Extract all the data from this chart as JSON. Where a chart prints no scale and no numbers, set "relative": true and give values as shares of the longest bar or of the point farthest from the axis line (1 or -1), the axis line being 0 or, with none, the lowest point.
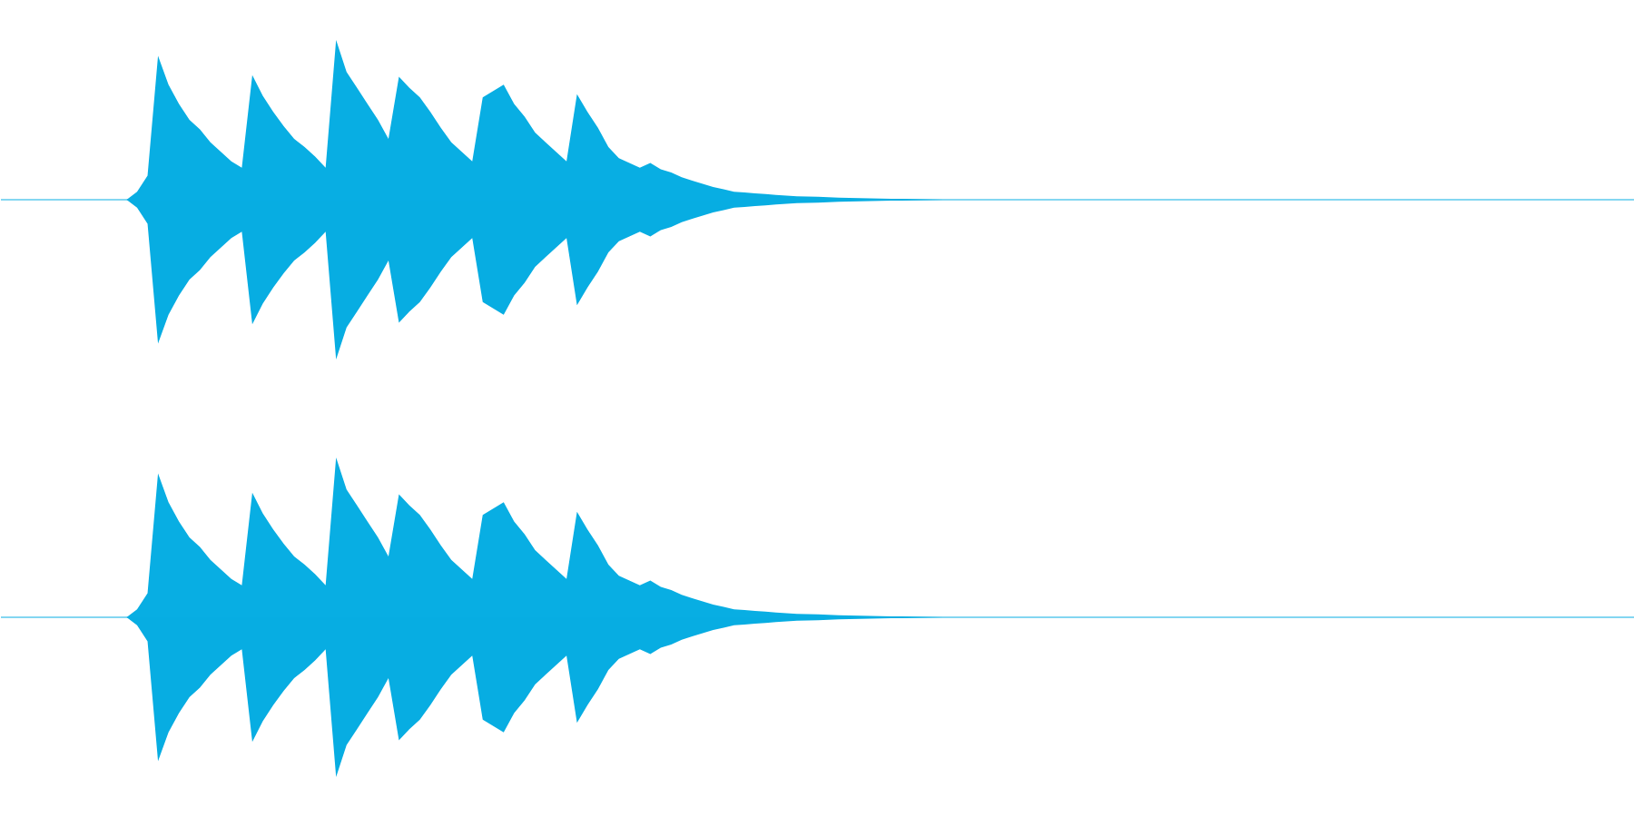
{
  "chart_data": [
    {
      "type": "area",
      "relative": true,
      "tick_labels": false,
      "categories": [
        null,
        null,
        null,
        null,
        null,
        null,
        null,
        null,
        null,
        null,
        null,
        null,
        null,
        null,
        null,
        null,
        null,
        null,
        null,
        null,
        null,
        null,
        null,
        null,
        null,
        null,
        null,
        null,
        null,
        null,
        null,
        null,
        null,
        null,
        null,
        null,
        null,
        null,
        null,
        null,
        null,
        null,
        null,
        null,
        null,
        null,
        null,
        null,
        null,
        null,
        null,
        null,
        null,
        null,
        null,
        null,
        null,
        null,
        null,
        null,
        null,
        null,
        null,
        null,
        null,
        null,
        null,
        null,
        null,
        null,
        null,
        null,
        null,
        null,
        null,
        null,
        null,
        null,
        null,
        null,
        null,
        null,
        null,
        null,
        null,
        null,
        null,
        null,
        null,
        null,
        null,
        null,
        null,
        null,
        null,
        null,
        null,
        null,
        null,
        null,
        null,
        null,
        null,
        null,
        null,
        null,
        null,
        null,
        null,
        null,
        null,
        null,
        null,
        null,
        null,
        null,
        null,
        null,
        null,
        null,
        null,
        null,
        null,
        null,
        null,
        null,
        null,
        null,
        null,
        null,
        null,
        null,
        null,
        null,
        null,
        null,
        null,
        null,
        null,
        null,
        null,
        null,
        null,
        null,
        null,
        null,
        null,
        null,
        null,
        null,
        null,
        null,
        null,
        null,
        null,
        null,
        null
      ],
      "series": [
        {
          "color": "#08aee3",
          "values": [
            0,
            0,
            0,
            0,
            0,
            0,
            0,
            0,
            0,
            0,
            0,
            0,
            0,
            0.05,
            0.15,
            0.9,
            0.72,
            0.6,
            0.5,
            0.44,
            0.36,
            0.3,
            0.24,
            0.2,
            0.78,
            0.65,
            0.55,
            0.46,
            0.38,
            0.33,
            0.27,
            0.2,
            1.0,
            0.8,
            0.7,
            0.6,
            0.5,
            0.38,
            0.77,
            0.7,
            0.64,
            0.55,
            0.45,
            0.36,
            0.3,
            0.24,
            0.64,
            0.68,
            0.72,
            0.6,
            0.52,
            0.42,
            0.36,
            0.3,
            0.24,
            0.66,
            0.55,
            0.45,
            0.33,
            0.26,
            0.23,
            0.2,
            0.23,
            0.19,
            0.17,
            0.14,
            0.12,
            0.1,
            0.08,
            0.065,
            0.05,
            0.045,
            0.04,
            0.035,
            0.03,
            0.025,
            0.022,
            0.02,
            0.018,
            0.015,
            0.013,
            0.011,
            0.01,
            0.008,
            0.007,
            0.006,
            0.005,
            0.004,
            0.003,
            0.002,
            0,
            0,
            0,
            0,
            0,
            0,
            0,
            0,
            0,
            0,
            0,
            0,
            0,
            0,
            0,
            0,
            0,
            0,
            0,
            0,
            0,
            0,
            0,
            0,
            0,
            0,
            0,
            0,
            0,
            0,
            0,
            0,
            0,
            0,
            0,
            0,
            0,
            0,
            0,
            0,
            0,
            0,
            0,
            0,
            0,
            0,
            0,
            0,
            0,
            0,
            0,
            0,
            0,
            0,
            0,
            0,
            0,
            0,
            0,
            0,
            0,
            0,
            0,
            0,
            0,
            0,
            0
          ]
        },
        {
          "color": "#07ade2",
          "values": [
            0,
            0,
            0,
            0,
            0,
            0,
            0,
            0,
            0,
            0,
            0,
            0,
            0,
            -0.05,
            -0.15,
            -0.9,
            -0.72,
            -0.6,
            -0.5,
            -0.44,
            -0.36,
            -0.3,
            -0.24,
            -0.2,
            -0.78,
            -0.65,
            -0.55,
            -0.46,
            -0.38,
            -0.33,
            -0.27,
            -0.2,
            -1.0,
            -0.8,
            -0.7,
            -0.6,
            -0.5,
            -0.38,
            -0.77,
            -0.7,
            -0.64,
            -0.55,
            -0.45,
            -0.36,
            -0.3,
            -0.24,
            -0.64,
            -0.68,
            -0.72,
            -0.6,
            -0.52,
            -0.42,
            -0.36,
            -0.3,
            -0.24,
            -0.66,
            -0.55,
            -0.45,
            -0.33,
            -0.26,
            -0.23,
            -0.2,
            -0.23,
            -0.19,
            -0.17,
            -0.14,
            -0.12,
            -0.1,
            -0.08,
            -0.065,
            -0.05,
            -0.045,
            -0.04,
            -0.035,
            -0.03,
            -0.025,
            -0.022,
            -0.02,
            -0.018,
            -0.015,
            -0.013,
            -0.011,
            -0.01,
            -0.008,
            -0.007,
            -0.006,
            -0.005,
            -0.004,
            -0.003,
            -0.002,
            0,
            0,
            0,
            0,
            0,
            0,
            0,
            0,
            0,
            0,
            0,
            0,
            0,
            0,
            0,
            0,
            0,
            0,
            0,
            0,
            0,
            0,
            0,
            0,
            0,
            0,
            0,
            0,
            0,
            0,
            0,
            0,
            0,
            0,
            0,
            0,
            0,
            0,
            0,
            0,
            0,
            0,
            0,
            0,
            0,
            0,
            0,
            0,
            0,
            0,
            0,
            0,
            0,
            0,
            0,
            0,
            0,
            0,
            0,
            0,
            0,
            0,
            0,
            0,
            0,
            0,
            0
          ]
        }
      ]
    },
    {
      "type": "area",
      "relative": true,
      "tick_labels": false,
      "categories": [
        null,
        null,
        null,
        null,
        null,
        null,
        null,
        null,
        null,
        null,
        null,
        null,
        null,
        null,
        null,
        null,
        null,
        null,
        null,
        null,
        null,
        null,
        null,
        null,
        null,
        null,
        null,
        null,
        null,
        null,
        null,
        null,
        null,
        null,
        null,
        null,
        null,
        null,
        null,
        null,
        null,
        null,
        null,
        null,
        null,
        null,
        null,
        null,
        null,
        null,
        null,
        null,
        null,
        null,
        null,
        null,
        null,
        null,
        null,
        null,
        null,
        null,
        null,
        null,
        null,
        null,
        null,
        null,
        null,
        null,
        null,
        null,
        null,
        null,
        null,
        null,
        null,
        null,
        null,
        null,
        null,
        null,
        null,
        null,
        null,
        null,
        null,
        null,
        null,
        null,
        null,
        null,
        null,
        null,
        null,
        null,
        null,
        null,
        null,
        null,
        null,
        null,
        null,
        null,
        null,
        null,
        null,
        null,
        null,
        null,
        null,
        null,
        null,
        null,
        null,
        null,
        null,
        null,
        null,
        null,
        null,
        null,
        null,
        null,
        null,
        null,
        null,
        null,
        null,
        null,
        null,
        null,
        null,
        null,
        null,
        null,
        null,
        null,
        null,
        null,
        null,
        null,
        null,
        null,
        null,
        null,
        null,
        null,
        null,
        null,
        null,
        null,
        null,
        null,
        null,
        null,
        null
      ],
      "series": [
        {
          "color": "#08aee3",
          "values": [
            0,
            0,
            0,
            0,
            0,
            0,
            0,
            0,
            0,
            0,
            0,
            0,
            0,
            0.05,
            0.15,
            0.9,
            0.72,
            0.6,
            0.5,
            0.44,
            0.36,
            0.3,
            0.24,
            0.2,
            0.78,
            0.65,
            0.55,
            0.46,
            0.38,
            0.33,
            0.27,
            0.2,
            1.0,
            0.8,
            0.7,
            0.6,
            0.5,
            0.38,
            0.77,
            0.7,
            0.64,
            0.55,
            0.45,
            0.36,
            0.3,
            0.24,
            0.64,
            0.68,
            0.72,
            0.6,
            0.52,
            0.42,
            0.36,
            0.3,
            0.24,
            0.66,
            0.55,
            0.45,
            0.33,
            0.26,
            0.23,
            0.2,
            0.23,
            0.19,
            0.17,
            0.14,
            0.12,
            0.1,
            0.08,
            0.065,
            0.05,
            0.045,
            0.04,
            0.035,
            0.03,
            0.025,
            0.022,
            0.02,
            0.018,
            0.015,
            0.013,
            0.011,
            0.01,
            0.008,
            0.007,
            0.006,
            0.005,
            0.004,
            0.003,
            0.002,
            0,
            0,
            0,
            0,
            0,
            0,
            0,
            0,
            0,
            0,
            0,
            0,
            0,
            0,
            0,
            0,
            0,
            0,
            0,
            0,
            0,
            0,
            0,
            0,
            0,
            0,
            0,
            0,
            0,
            0,
            0,
            0,
            0,
            0,
            0,
            0,
            0,
            0,
            0,
            0,
            0,
            0,
            0,
            0,
            0,
            0,
            0,
            0,
            0,
            0,
            0,
            0,
            0,
            0,
            0,
            0,
            0,
            0,
            0,
            0,
            0,
            0,
            0,
            0,
            0,
            0,
            0
          ]
        },
        {
          "color": "#07ade2",
          "values": [
            0,
            0,
            0,
            0,
            0,
            0,
            0,
            0,
            0,
            0,
            0,
            0,
            0,
            -0.05,
            -0.15,
            -0.9,
            -0.72,
            -0.6,
            -0.5,
            -0.44,
            -0.36,
            -0.3,
            -0.24,
            -0.2,
            -0.78,
            -0.65,
            -0.55,
            -0.46,
            -0.38,
            -0.33,
            -0.27,
            -0.2,
            -1.0,
            -0.8,
            -0.7,
            -0.6,
            -0.5,
            -0.38,
            -0.77,
            -0.7,
            -0.64,
            -0.55,
            -0.45,
            -0.36,
            -0.3,
            -0.24,
            -0.64,
            -0.68,
            -0.72,
            -0.6,
            -0.52,
            -0.42,
            -0.36,
            -0.3,
            -0.24,
            -0.66,
            -0.55,
            -0.45,
            -0.33,
            -0.26,
            -0.23,
            -0.2,
            -0.23,
            -0.19,
            -0.17,
            -0.14,
            -0.12,
            -0.1,
            -0.08,
            -0.065,
            -0.05,
            -0.045,
            -0.04,
            -0.035,
            -0.03,
            -0.025,
            -0.022,
            -0.02,
            -0.018,
            -0.015,
            -0.013,
            -0.011,
            -0.01,
            -0.008,
            -0.007,
            -0.006,
            -0.005,
            -0.004,
            -0.003,
            -0.002,
            0,
            0,
            0,
            0,
            0,
            0,
            0,
            0,
            0,
            0,
            0,
            0,
            0,
            0,
            0,
            0,
            0,
            0,
            0,
            0,
            0,
            0,
            0,
            0,
            0,
            0,
            0,
            0,
            0,
            0,
            0,
            0,
            0,
            0,
            0,
            0,
            0,
            0,
            0,
            0,
            0,
            0,
            0,
            0,
            0,
            0,
            0,
            0,
            0,
            0,
            0,
            0,
            0,
            0,
            0,
            0,
            0,
            0,
            0,
            0,
            0,
            0,
            0,
            0,
            0,
            0,
            0
          ]
        }
      ]
    }
  ]
}
